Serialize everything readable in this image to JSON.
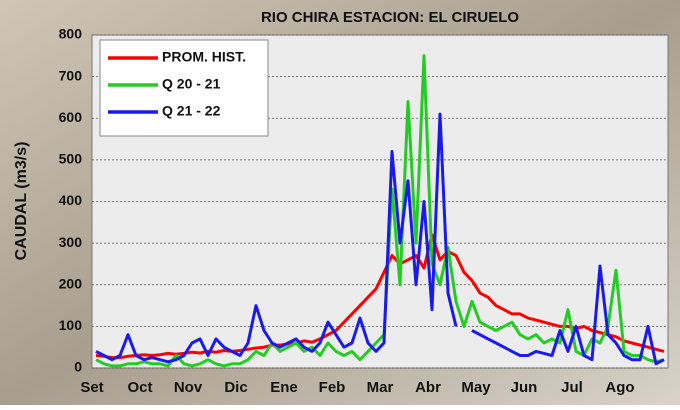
{
  "chart_data": {
    "type": "line",
    "title": "RIO CHIRA  ESTACION: EL CIRUELO",
    "y_label": "CAUDAL (m3/s)",
    "categories": [
      "Set",
      null,
      null,
      null,
      null,
      null,
      "Oct",
      null,
      null,
      null,
      null,
      null,
      "Nov",
      null,
      null,
      null,
      null,
      null,
      "Dic",
      null,
      null,
      null,
      null,
      null,
      "Ene",
      null,
      null,
      null,
      null,
      null,
      "Feb",
      null,
      null,
      null,
      null,
      null,
      "Mar",
      null,
      null,
      null,
      null,
      null,
      "Abr",
      null,
      null,
      null,
      null,
      null,
      "May",
      null,
      null,
      null,
      null,
      null,
      "Jun",
      null,
      null,
      null,
      null,
      null,
      "Jul",
      null,
      null,
      null,
      null,
      null,
      "Ago",
      null,
      null,
      null,
      null,
      null
    ],
    "series": [
      {
        "name": "PROM. HIST.",
        "color": "#ff0000",
        "values": [
          30,
          28,
          25,
          25,
          28,
          30,
          32,
          30,
          32,
          35,
          33,
          35,
          38,
          36,
          40,
          38,
          42,
          40,
          42,
          45,
          48,
          50,
          55,
          55,
          58,
          60,
          65,
          62,
          70,
          80,
          90,
          110,
          130,
          150,
          170,
          190,
          230,
          270,
          250,
          260,
          270,
          240,
          320,
          260,
          280,
          270,
          230,
          210,
          180,
          170,
          150,
          140,
          130,
          130,
          120,
          115,
          110,
          105,
          100,
          100,
          95,
          100,
          90,
          85,
          80,
          75,
          65,
          60,
          55,
          50,
          45,
          40
        ]
      },
      {
        "name": "Q 20 - 21",
        "color": "#22cc22",
        "values": [
          20,
          10,
          5,
          5,
          10,
          10,
          15,
          10,
          10,
          5,
          30,
          10,
          5,
          10,
          20,
          10,
          5,
          10,
          10,
          20,
          40,
          30,
          60,
          40,
          50,
          60,
          40,
          50,
          30,
          60,
          40,
          30,
          40,
          20,
          40,
          60,
          80,
          430,
          200,
          640,
          300,
          750,
          250,
          200,
          290,
          160,
          100,
          160,
          110,
          100,
          90,
          100,
          110,
          80,
          70,
          80,
          60,
          70,
          60,
          140,
          40,
          30,
          70,
          60,
          100,
          235,
          40,
          30,
          30,
          20,
          15,
          20
        ]
      },
      {
        "name": "Q 21 - 22",
        "color": "#1a1aee",
        "values": [
          40,
          30,
          20,
          30,
          80,
          30,
          20,
          25,
          20,
          15,
          20,
          30,
          60,
          70,
          30,
          70,
          50,
          40,
          30,
          60,
          150,
          90,
          60,
          50,
          60,
          70,
          50,
          40,
          60,
          110,
          80,
          50,
          60,
          120,
          60,
          40,
          60,
          520,
          300,
          450,
          200,
          400,
          140,
          610,
          180,
          100,
          null,
          90,
          80,
          70,
          60,
          50,
          40,
          30,
          30,
          40,
          35,
          30,
          90,
          40,
          100,
          30,
          20,
          245,
          80,
          60,
          30,
          20,
          20,
          100,
          10,
          20
        ]
      }
    ],
    "ylim": [
      0,
      800
    ],
    "yticks": [
      0,
      100,
      200,
      300,
      400,
      500,
      600,
      700,
      800
    ],
    "grid": true
  }
}
